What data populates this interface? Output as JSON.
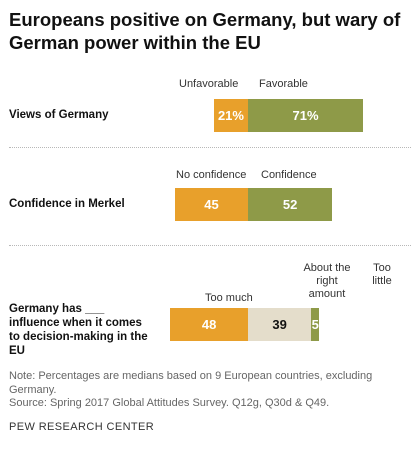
{
  "title": "Europeans positive on Germany, but wary of German power within the EU",
  "colors": {
    "unfavorable": "#E8A02B",
    "favorable": "#8E9A48",
    "neutral": "#E4DDCB",
    "text_light": "#ffffff",
    "text_dark": "#111111"
  },
  "chart_data": {
    "type": "bar",
    "orientation": "horizontal-stacked",
    "rows": [
      {
        "label": "Views of Germany",
        "segments": [
          {
            "name": "Unfavorable",
            "value": 21,
            "display": "21%",
            "color": "#E8A02B",
            "text_color": "#ffffff"
          },
          {
            "name": "Favorable",
            "value": 71,
            "display": "71%",
            "color": "#8E9A48",
            "text_color": "#ffffff"
          }
        ]
      },
      {
        "label": "Confidence in Merkel",
        "segments": [
          {
            "name": "No confidence",
            "value": 45,
            "display": "45",
            "color": "#E8A02B",
            "text_color": "#ffffff"
          },
          {
            "name": "Confidence",
            "value": 52,
            "display": "52",
            "color": "#8E9A48",
            "text_color": "#ffffff"
          }
        ]
      },
      {
        "label": "Germany has ___ influence when it comes to decision-making in the EU",
        "segments": [
          {
            "name": "Too much",
            "value": 48,
            "display": "48",
            "color": "#E8A02B",
            "text_color": "#ffffff"
          },
          {
            "name": "About the right amount",
            "value": 39,
            "display": "39",
            "color": "#E4DDCB",
            "text_color": "#111111"
          },
          {
            "name": "Too little",
            "value": 5,
            "display": "5",
            "color": "#8E9A48",
            "text_color": "#ffffff"
          }
        ]
      }
    ]
  },
  "notes": {
    "note": "Note: Percentages are medians based on 9 European countries, excluding Germany.",
    "source": "Source: Spring 2017 Global Attitudes Survey. Q12g, Q30d & Q49."
  },
  "brand": "PEW RESEARCH CENTER"
}
